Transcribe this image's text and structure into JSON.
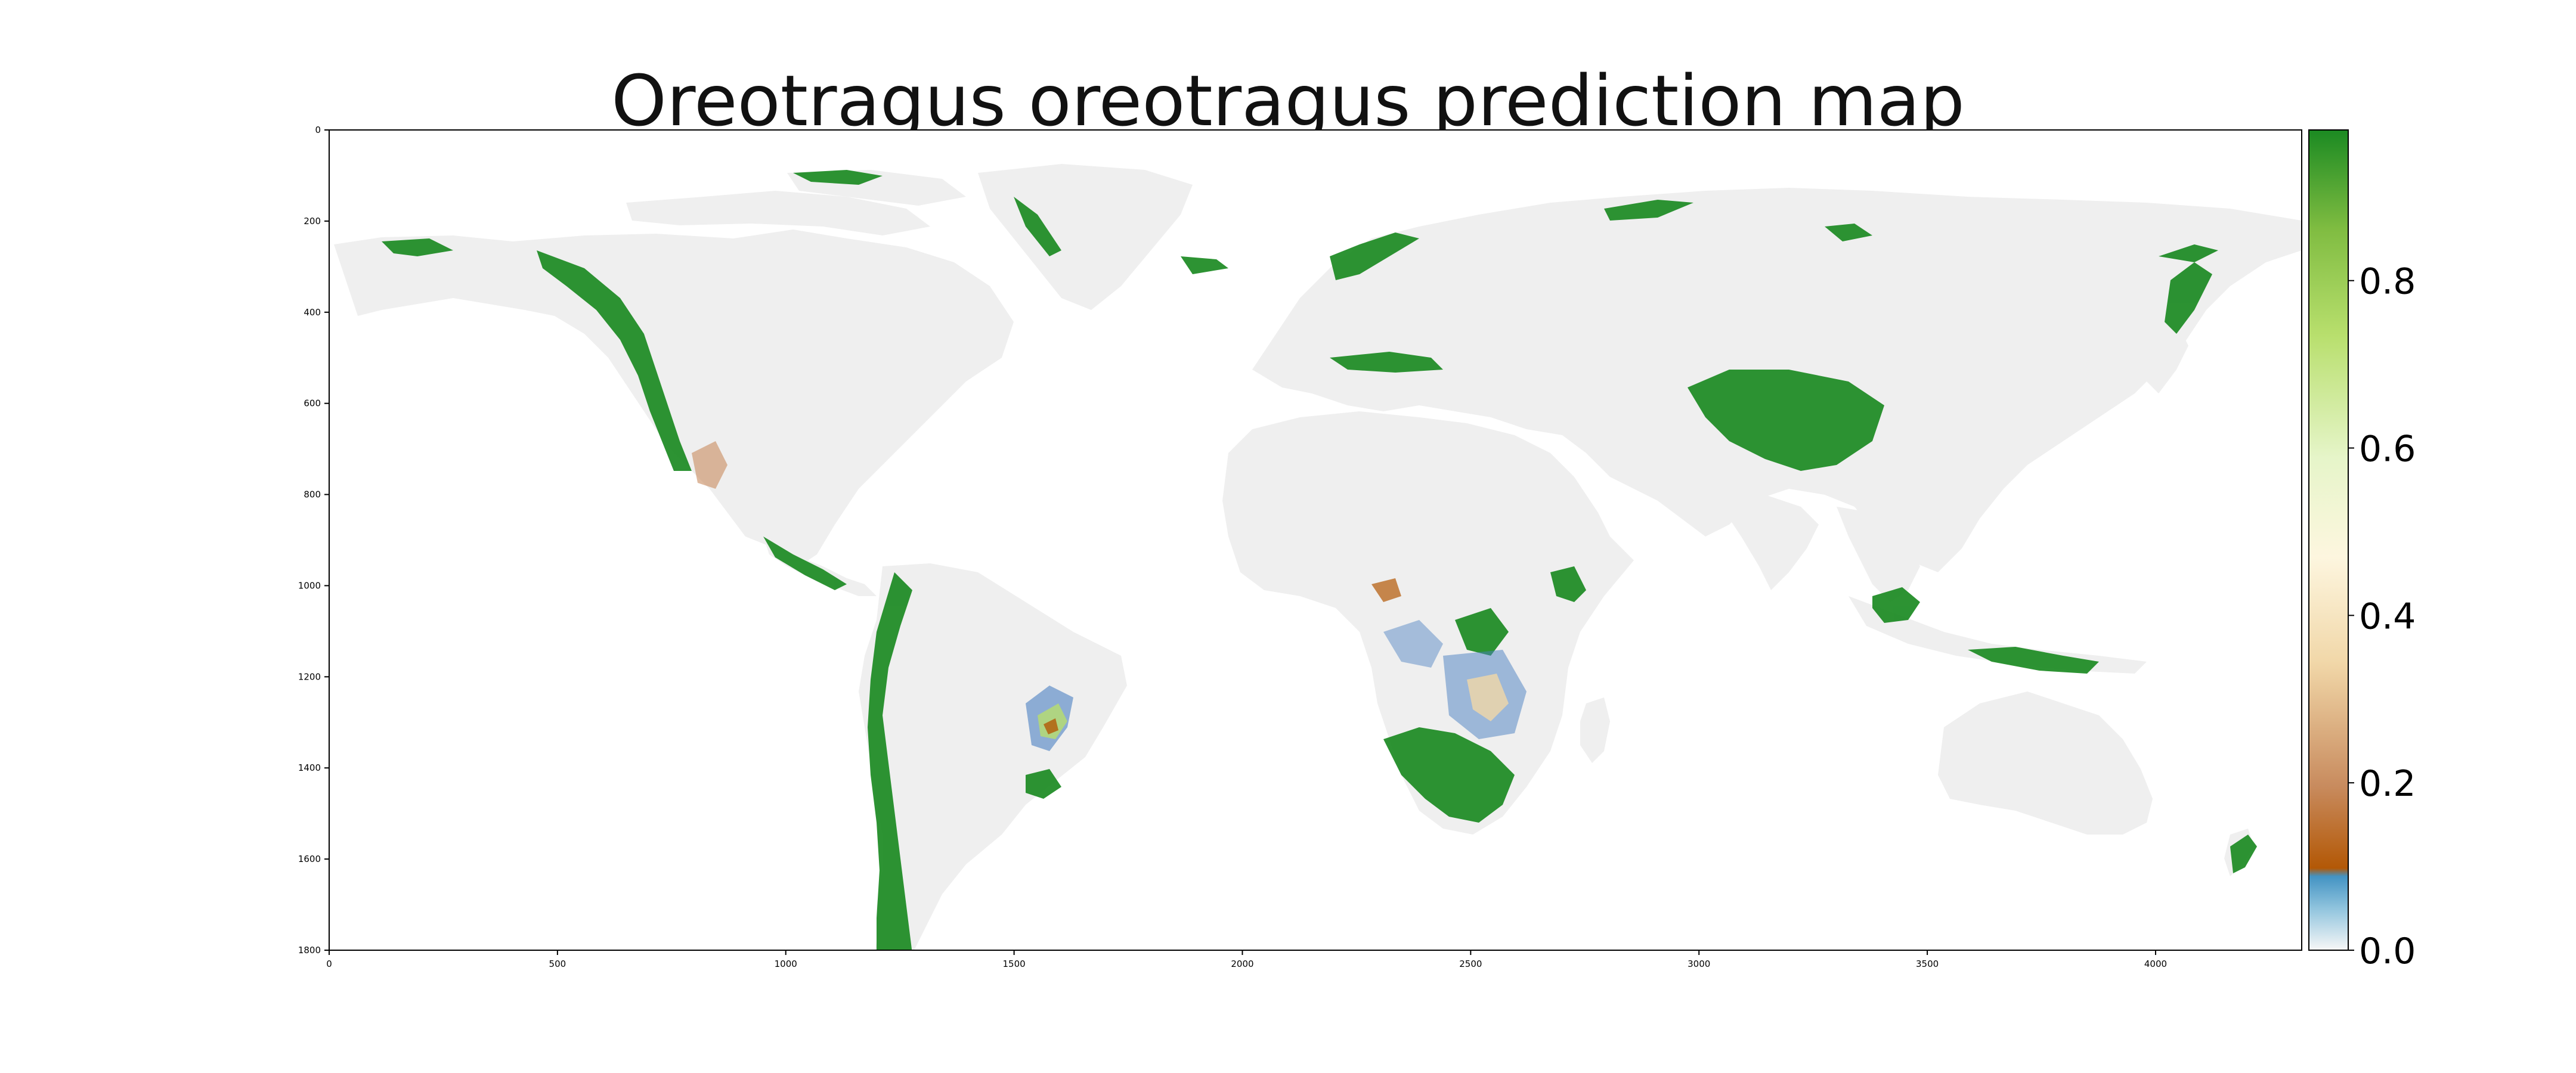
{
  "title": "Oreotragus oreotragus prediction map",
  "chart_data": {
    "type": "heatmap",
    "title": "Oreotragus oreotragus prediction map",
    "x_ticks": [
      0,
      500,
      1000,
      1500,
      2000,
      2500,
      3000,
      3500,
      4000
    ],
    "y_ticks": [
      0,
      200,
      400,
      600,
      800,
      1000,
      1200,
      1400,
      1600,
      1800
    ],
    "xlim": [
      0,
      4320
    ],
    "ylim": [
      1800,
      0
    ],
    "colorbar": {
      "ticks": [
        "0.0",
        "0.2",
        "0.4",
        "0.6",
        "0.8"
      ],
      "range": [
        0,
        0.98
      ],
      "colors": [
        {
          "stop": 0.0,
          "color": "#f7f7f7"
        },
        {
          "stop": 0.05,
          "color": "#92c5de"
        },
        {
          "stop": 0.09,
          "color": "#4393c3"
        },
        {
          "stop": 0.1,
          "color": "#b35806"
        },
        {
          "stop": 0.2,
          "color": "#c88b5e"
        },
        {
          "stop": 0.35,
          "color": "#f1d7a8"
        },
        {
          "stop": 0.48,
          "color": "#fdf6df"
        },
        {
          "stop": 0.6,
          "color": "#e6f5c9"
        },
        {
          "stop": 0.75,
          "color": "#b8df6d"
        },
        {
          "stop": 0.88,
          "color": "#7fbc41"
        },
        {
          "stop": 1.0,
          "color": "#1b8a22"
        }
      ]
    },
    "colors": {
      "land": "#efefef",
      "high": "#1b8a22",
      "mid": "#b8df6d",
      "low": "#4a7fc1",
      "lowbrown": "#b35806"
    }
  }
}
